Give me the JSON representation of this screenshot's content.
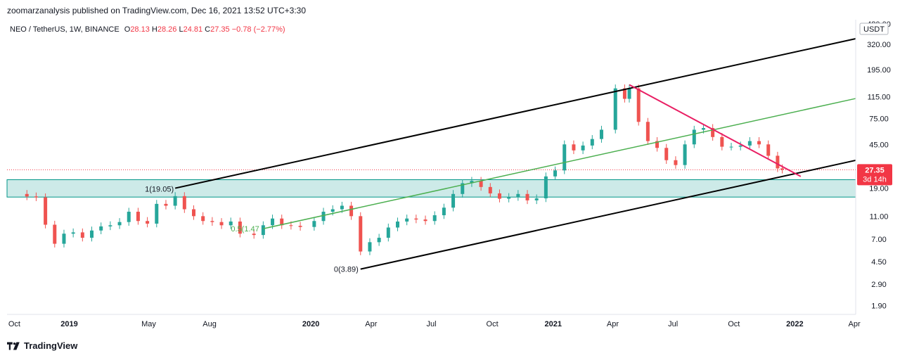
{
  "header": {
    "publisher": "zoomarzanalysis published on TradingView.com, Dec 16, 2021 13:52 UTC+3:30"
  },
  "legend": {
    "symbol": "NEO / TetherUS, 1W, BINANCE",
    "open_label": "O",
    "open": "28.13",
    "high_label": "H",
    "high": "28.26",
    "low_label": "L",
    "low": "24.81",
    "close_label": "C",
    "close": "27.35",
    "change": "−0.78 (−2.77%)"
  },
  "price_scale": {
    "currency": "USDT",
    "current_price": "27.35",
    "countdown": "3d 14h",
    "ticks": [
      "480.00",
      "320.00",
      "195.00",
      "115.00",
      "75.00",
      "45.00",
      "19.00",
      "11.00",
      "7.00",
      "4.50",
      "2.90",
      "1.90"
    ]
  },
  "annotations": {
    "fib_1": "1(19.05)",
    "fib_0": "0(3.89)",
    "fib_05_a": "0.5(",
    "fib_05_b": "1.47"
  },
  "footer": {
    "brand": "TradingView"
  },
  "colors": {
    "bull": "#26a69a",
    "bear": "#ef5350",
    "channel": "#000000",
    "midline": "#4caf50",
    "downtrend": "#e91e63",
    "zone_fill": "#b2dfdb",
    "zone_border": "#009688",
    "price_label": "#f23645"
  },
  "chart_data": {
    "type": "candlestick",
    "title": "NEO / TetherUS, 1W, BINANCE",
    "y_scale": "log",
    "ylim": [
      1.6,
      520
    ],
    "x_tick_labels": [
      "Oct",
      "2019",
      "May",
      "Aug",
      "2020",
      "Apr",
      "Jul",
      "Oct",
      "2021",
      "Apr",
      "Jul",
      "Oct",
      "2022",
      "Apr"
    ],
    "x_tick_dates": [
      "2018-10-01",
      "2019-01-01",
      "2019-05-01",
      "2019-08-01",
      "2020-01-01",
      "2020-04-01",
      "2020-07-01",
      "2020-10-01",
      "2021-01-01",
      "2021-04-01",
      "2021-07-01",
      "2021-10-01",
      "2022-01-01",
      "2022-04-01"
    ],
    "xlim": [
      "2018-09-29",
      "2022-04-03"
    ],
    "series_close": [
      [
        "2018-10-01",
        17.0
      ],
      [
        "2018-10-29",
        16.2
      ],
      [
        "2018-11-12",
        15.9
      ],
      [
        "2018-11-26",
        9.3
      ],
      [
        "2018-12-10",
        6.4
      ],
      [
        "2018-12-24",
        7.8
      ],
      [
        "2019-01-07",
        8.0
      ],
      [
        "2019-01-21",
        7.2
      ],
      [
        "2019-02-04",
        8.3
      ],
      [
        "2019-02-18",
        9.0
      ],
      [
        "2019-03-04",
        9.2
      ],
      [
        "2019-03-18",
        9.8
      ],
      [
        "2019-04-01",
        12.0
      ],
      [
        "2019-04-15",
        10.0
      ],
      [
        "2019-04-29",
        9.5
      ],
      [
        "2019-05-13",
        14.0
      ],
      [
        "2019-05-27",
        13.5
      ],
      [
        "2019-06-10",
        16.3
      ],
      [
        "2019-06-24",
        12.6
      ],
      [
        "2019-07-08",
        11.0
      ],
      [
        "2019-07-22",
        10.0
      ],
      [
        "2019-08-05",
        9.8
      ],
      [
        "2019-08-19",
        9.2
      ],
      [
        "2019-09-02",
        9.9
      ],
      [
        "2019-09-16",
        7.8
      ],
      [
        "2019-10-07",
        7.6
      ],
      [
        "2019-10-21",
        9.2
      ],
      [
        "2019-11-04",
        10.5
      ],
      [
        "2019-11-18",
        9.2
      ],
      [
        "2019-12-02",
        9.1
      ],
      [
        "2019-12-16",
        8.9
      ],
      [
        "2020-01-06",
        10.0
      ],
      [
        "2020-01-20",
        12.0
      ],
      [
        "2020-02-03",
        12.6
      ],
      [
        "2020-02-17",
        13.5
      ],
      [
        "2020-03-02",
        11.0
      ],
      [
        "2020-03-16",
        5.5
      ],
      [
        "2020-03-30",
        6.6
      ],
      [
        "2020-04-13",
        7.2
      ],
      [
        "2020-04-27",
        8.8
      ],
      [
        "2020-05-11",
        9.9
      ],
      [
        "2020-05-25",
        10.5
      ],
      [
        "2020-06-08",
        10.3
      ],
      [
        "2020-06-22",
        10.0
      ],
      [
        "2020-07-06",
        11.2
      ],
      [
        "2020-07-20",
        13.0
      ],
      [
        "2020-08-03",
        17.0
      ],
      [
        "2020-08-17",
        21.0
      ],
      [
        "2020-08-31",
        22.0
      ],
      [
        "2020-09-14",
        19.5
      ],
      [
        "2020-09-28",
        17.2
      ],
      [
        "2020-10-12",
        15.5
      ],
      [
        "2020-10-26",
        16.0
      ],
      [
        "2020-11-09",
        17.0
      ],
      [
        "2020-11-23",
        15.0
      ],
      [
        "2020-12-07",
        15.6
      ],
      [
        "2020-12-21",
        24.0
      ],
      [
        "2021-01-04",
        27.0
      ],
      [
        "2021-01-18",
        45.0
      ],
      [
        "2021-02-01",
        40.0
      ],
      [
        "2021-02-15",
        44.0
      ],
      [
        "2021-03-01",
        50.0
      ],
      [
        "2021-03-15",
        60.0
      ],
      [
        "2021-04-05",
        135.0
      ],
      [
        "2021-04-19",
        110.0
      ],
      [
        "2021-04-26",
        135.0
      ],
      [
        "2021-05-10",
        70.0
      ],
      [
        "2021-05-24",
        48.0
      ],
      [
        "2021-06-07",
        42.0
      ],
      [
        "2021-06-21",
        33.0
      ],
      [
        "2021-07-05",
        30.0
      ],
      [
        "2021-07-19",
        45.0
      ],
      [
        "2021-08-02",
        60.0
      ],
      [
        "2021-08-16",
        62.0
      ],
      [
        "2021-08-30",
        52.0
      ],
      [
        "2021-09-13",
        43.0
      ],
      [
        "2021-09-27",
        43.0
      ],
      [
        "2021-10-11",
        44.0
      ],
      [
        "2021-10-25",
        48.0
      ],
      [
        "2021-11-08",
        45.0
      ],
      [
        "2021-11-22",
        36.0
      ],
      [
        "2021-12-06",
        28.1
      ],
      [
        "2021-12-13",
        27.35
      ]
    ],
    "levels": [
      {
        "label": "1",
        "value": 19.05
      },
      {
        "label": "0",
        "value": 3.89
      },
      {
        "label": "0.5",
        "value": 11.47
      }
    ],
    "zone": {
      "low": 16.0,
      "high": 22.5
    },
    "current_price": 27.35
  }
}
